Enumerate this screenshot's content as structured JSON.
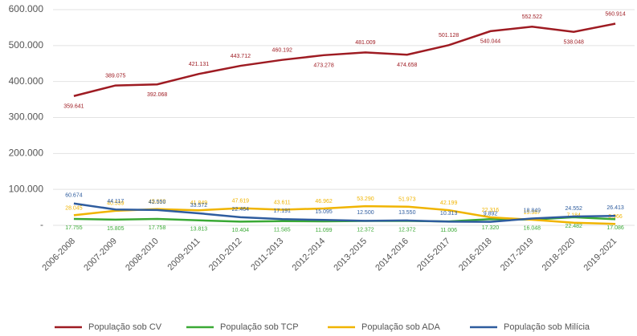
{
  "chart_data": {
    "type": "line",
    "categories": [
      "2006-2008",
      "2007-2009",
      "2008-2010",
      "2009-2011",
      "2010-2012",
      "2011-2013",
      "2012-2014",
      "2013-2015",
      "2014-2016",
      "2015-2017",
      "2016-2018",
      "2017-2019",
      "2018-2020",
      "2019-2021"
    ],
    "series": [
      {
        "name": "População sob CV",
        "color": "#9e1b22",
        "values": [
          359641,
          389075,
          392068,
          421131,
          443712,
          460192,
          473278,
          481009,
          474658,
          501128,
          540044,
          552522,
          538048,
          560914
        ],
        "value_labels": [
          "359.641",
          "389.075",
          "392.068",
          "421.131",
          "443.712",
          "460.192",
          "473.278",
          "481.009",
          "474.658",
          "501.128",
          "540.044",
          "552.522",
          "538.048",
          "560.914"
        ]
      },
      {
        "name": "População sob TCP",
        "color": "#3aa935",
        "values": [
          17755,
          15805,
          17758,
          13813,
          10404,
          11585,
          11099,
          12372,
          12372,
          11006,
          17320,
          16048,
          22482,
          17086
        ],
        "value_labels": [
          "17.755",
          "15.805",
          "17.758",
          "13.813",
          "10.404",
          "11.585",
          "11.099",
          "12.372",
          "12.372",
          "11.006",
          "17.320",
          "16.048",
          "22.482",
          "17.086"
        ]
      },
      {
        "name": "População sob ADA",
        "color": "#f0b400",
        "values": [
          28045,
          40539,
          45039,
          41849,
          47619,
          43611,
          46962,
          53290,
          51973,
          42199,
          22316,
          15587,
          7184,
          3966
        ],
        "value_labels": [
          "28.045",
          "40.539",
          "45.039",
          "41.849",
          "47.619",
          "43.611",
          "46.962",
          "53.290",
          "51.973",
          "42.199",
          "22.316",
          "15.587",
          "7.184",
          "3.966"
        ]
      },
      {
        "name": "População sob Milícia",
        "color": "#2e5c9e",
        "values": [
          60674,
          44117,
          42550,
          33572,
          22464,
          17191,
          15095,
          12500,
          13550,
          10313,
          9892,
          18849,
          24552,
          26413
        ],
        "value_labels": [
          "60.674",
          "44.117",
          "42.550",
          "33.572",
          "22.464",
          "17.191",
          "15.095",
          "12.500",
          "13.550",
          "10.313",
          "9.892",
          "18.849",
          "24.552",
          "26.413"
        ]
      }
    ],
    "ylim": [
      0,
      600000
    ],
    "yticks": [
      {
        "value": 0,
        "label": "-"
      },
      {
        "value": 100000,
        "label": "100.000"
      },
      {
        "value": 200000,
        "label": "200.000"
      },
      {
        "value": 300000,
        "label": "300.000"
      },
      {
        "value": 400000,
        "label": "400.000"
      },
      {
        "value": 500000,
        "label": "500.000"
      },
      {
        "value": 600000,
        "label": "600.000"
      }
    ],
    "grid": true,
    "legend": "bottom"
  }
}
